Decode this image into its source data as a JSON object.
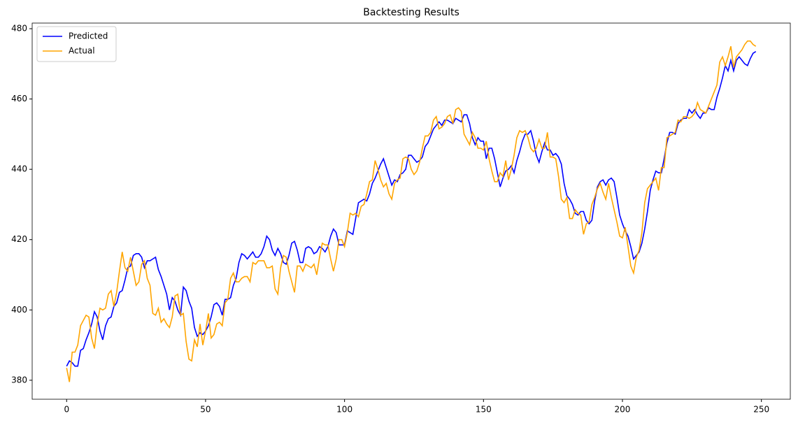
{
  "chart_data": {
    "type": "line",
    "title": "Backtesting Results",
    "xlim": [
      -12.4,
      260.4
    ],
    "xticks": [
      0,
      50,
      100,
      150,
      200,
      250
    ],
    "ylim": [
      374.6,
      481.6
    ],
    "yticks": [
      380,
      400,
      420,
      440,
      460,
      480
    ],
    "legend": "upper left",
    "series": [
      {
        "name": "Predicted",
        "color": "#0000ff",
        "values": [
          384,
          385.5,
          385,
          384,
          384,
          388.5,
          389,
          391.5,
          393.5,
          396,
          399.5,
          398,
          394,
          391.5,
          395.5,
          397.5,
          398,
          401,
          402,
          405,
          405.5,
          408.5,
          412,
          412.5,
          415.5,
          416,
          416,
          415,
          412,
          414,
          414,
          414.5,
          415,
          411.5,
          409.5,
          407,
          404.5,
          400,
          403.5,
          402.5,
          400,
          398.5,
          406.5,
          405.5,
          402.5,
          400.5,
          395,
          392.5,
          393.5,
          393,
          394,
          395.5,
          398,
          401.5,
          402,
          401,
          398.5,
          403,
          403,
          403.5,
          407,
          409,
          413.5,
          416,
          415.5,
          414.5,
          415.5,
          416.5,
          415,
          415,
          416,
          418,
          421,
          420,
          417,
          415.5,
          417.5,
          416,
          413.5,
          413,
          415.5,
          419,
          419.5,
          417,
          413.5,
          413.5,
          417.5,
          418,
          417.5,
          416,
          416.5,
          418,
          417.5,
          416.5,
          418,
          421,
          423,
          422,
          418.5,
          418.5,
          418.5,
          422.5,
          422,
          421.5,
          426,
          430.5,
          431,
          431.5,
          431,
          433,
          436,
          437.5,
          439.5,
          441.5,
          443,
          440.5,
          438,
          435.5,
          437,
          436.5,
          438.5,
          439,
          440,
          444,
          444,
          443,
          442,
          442.5,
          443.5,
          446.5,
          447.5,
          449.5,
          451.5,
          452.5,
          453.5,
          452.5,
          454,
          454,
          453.5,
          453,
          454.5,
          454,
          453.5,
          455.5,
          455.5,
          453,
          449,
          447,
          449,
          448,
          448,
          443,
          446,
          446,
          443,
          439,
          435,
          437.5,
          439.5,
          440,
          441,
          439,
          442.5,
          445,
          448,
          450,
          450,
          451,
          448,
          444,
          442,
          445,
          447.5,
          445.5,
          445.5,
          444,
          444.5,
          443.5,
          441.5,
          436,
          432.5,
          431.5,
          430,
          427.5,
          427,
          428,
          428,
          425.5,
          424.5,
          425.5,
          431,
          435,
          436.5,
          437,
          435.5,
          437,
          437.5,
          436.5,
          432,
          427,
          424.5,
          422.5,
          421,
          418,
          414.5,
          415.5,
          416.5,
          419,
          423,
          428,
          434,
          437,
          439.5,
          439,
          439,
          443,
          447.5,
          450.5,
          450.5,
          450,
          453,
          454,
          454.5,
          454.5,
          457,
          456,
          457,
          455.5,
          454.5,
          456,
          456,
          457.5,
          457,
          457,
          460.5,
          463,
          466,
          469.5,
          468,
          471,
          468,
          471,
          472,
          471,
          470,
          469.5,
          471.5,
          473,
          473.5
        ]
      },
      {
        "name": "Actual",
        "color": "#ffa500",
        "values": [
          383.5,
          379.5,
          388,
          388,
          390,
          395.5,
          397,
          398.5,
          398,
          392,
          389,
          396,
          400.5,
          400,
          400.5,
          404.5,
          405.5,
          401,
          405,
          411,
          416.5,
          412,
          411,
          415,
          411,
          407,
          408,
          413,
          414,
          409,
          407,
          399,
          398.5,
          400.5,
          396.5,
          397.5,
          396,
          395,
          398,
          404,
          404.5,
          398.5,
          399,
          391,
          386,
          385.5,
          391.5,
          389.5,
          396,
          390,
          394,
          399,
          392,
          393,
          396,
          396.5,
          395.5,
          402,
          403,
          409,
          410.5,
          408,
          408,
          409,
          409.5,
          409.5,
          408,
          413.5,
          413,
          414,
          414,
          414,
          412,
          412,
          412.5,
          406,
          404.5,
          412,
          415.5,
          415,
          411,
          408,
          405,
          412.5,
          412.5,
          411,
          413,
          412.5,
          412,
          413,
          410,
          415,
          419,
          418.5,
          418.5,
          414.5,
          411,
          414.5,
          420,
          420,
          418,
          422,
          427.5,
          427,
          427.5,
          426.5,
          429.5,
          430,
          433,
          436.5,
          437,
          442.5,
          440,
          437,
          435,
          436,
          433,
          431.5,
          436,
          437,
          437.5,
          443,
          443.5,
          443,
          440,
          438.5,
          439.5,
          442,
          446,
          449.5,
          449.5,
          450.5,
          454,
          455,
          451.5,
          452,
          453,
          455,
          455.5,
          453,
          457,
          457.5,
          456.5,
          450,
          448.5,
          447,
          450.5,
          449,
          446,
          446,
          445.5,
          448,
          443,
          439.5,
          436.5,
          436.5,
          439,
          438,
          442.5,
          437,
          440,
          444,
          449,
          451,
          450.5,
          451,
          449,
          446,
          445,
          446,
          448.5,
          446,
          446,
          450.5,
          443.5,
          443.5,
          443,
          438,
          431.5,
          430.5,
          432,
          426,
          426,
          428.5,
          427.5,
          427,
          421.5,
          424.5,
          425,
          430,
          432,
          434.5,
          436,
          433.5,
          431.5,
          436,
          432,
          428.5,
          425,
          421,
          420.5,
          423.5,
          418,
          412.5,
          410.5,
          415,
          417,
          422,
          430.5,
          434.5,
          435.5,
          436.5,
          437.5,
          434,
          440.5,
          440.5,
          449,
          449.5,
          450,
          450.5,
          454,
          453.5,
          455,
          455,
          454.5,
          455,
          456,
          459,
          457,
          456.5,
          456,
          458,
          460,
          462,
          464,
          470.5,
          472,
          469.5,
          472,
          475,
          469,
          472,
          473,
          474,
          475.5,
          476.5,
          476.5,
          475.5,
          475
        ]
      }
    ]
  }
}
